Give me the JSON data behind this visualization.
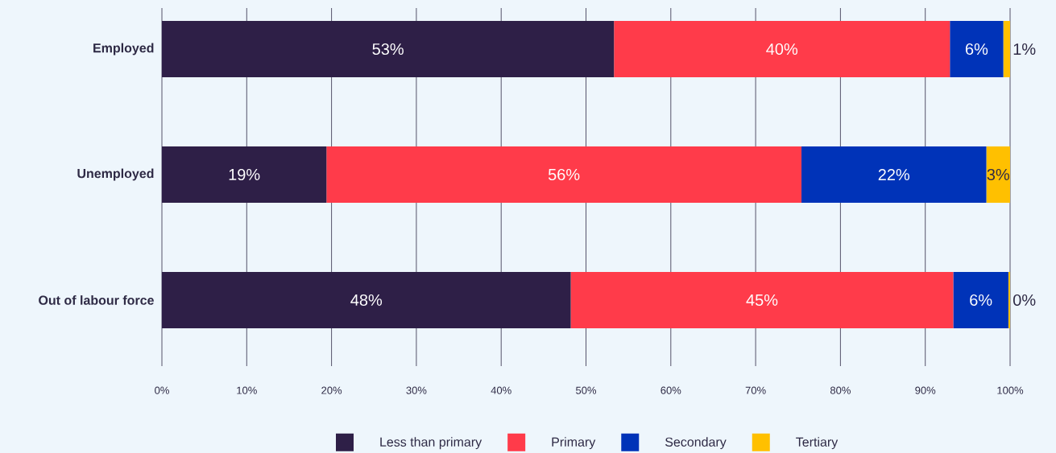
{
  "chart_data": {
    "type": "bar",
    "orientation": "horizontal",
    "stacked": true,
    "categories": [
      "Employed",
      "Unemployed",
      "Out of labour force"
    ],
    "series": [
      {
        "name": "Less than primary",
        "color": "#2e1f47",
        "values": [
          53.3,
          19.4,
          48.2
        ],
        "value_labels": [
          "53%",
          "19%",
          "48%"
        ]
      },
      {
        "name": "Primary",
        "color": "#ff3b4a",
        "values": [
          39.6,
          56.0,
          45.1
        ],
        "value_labels": [
          "40%",
          "56%",
          "45%"
        ]
      },
      {
        "name": "Secondary",
        "color": "#0033b8",
        "values": [
          6.3,
          21.8,
          6.5
        ],
        "value_labels": [
          "6%",
          "22%",
          "6%"
        ]
      },
      {
        "name": "Tertiary",
        "color": "#ffc000",
        "values": [
          0.8,
          2.8,
          0.2
        ],
        "value_labels": [
          "1%",
          "3%",
          "0%"
        ]
      }
    ],
    "xlim": [
      0,
      100
    ],
    "xticks": [
      {
        "value": 0,
        "label": "0%"
      },
      {
        "value": 10,
        "label": "10%"
      },
      {
        "value": 20,
        "label": "20%"
      },
      {
        "value": 30,
        "label": "30%"
      },
      {
        "value": 40,
        "label": "40%"
      },
      {
        "value": 50,
        "label": "50%"
      },
      {
        "value": 60,
        "label": "60%"
      },
      {
        "value": 70,
        "label": "70%"
      },
      {
        "value": 80,
        "label": "80%"
      },
      {
        "value": 90,
        "label": "90%"
      },
      {
        "value": 100,
        "label": "100%"
      }
    ],
    "grid": "x",
    "legend": "bottom"
  }
}
